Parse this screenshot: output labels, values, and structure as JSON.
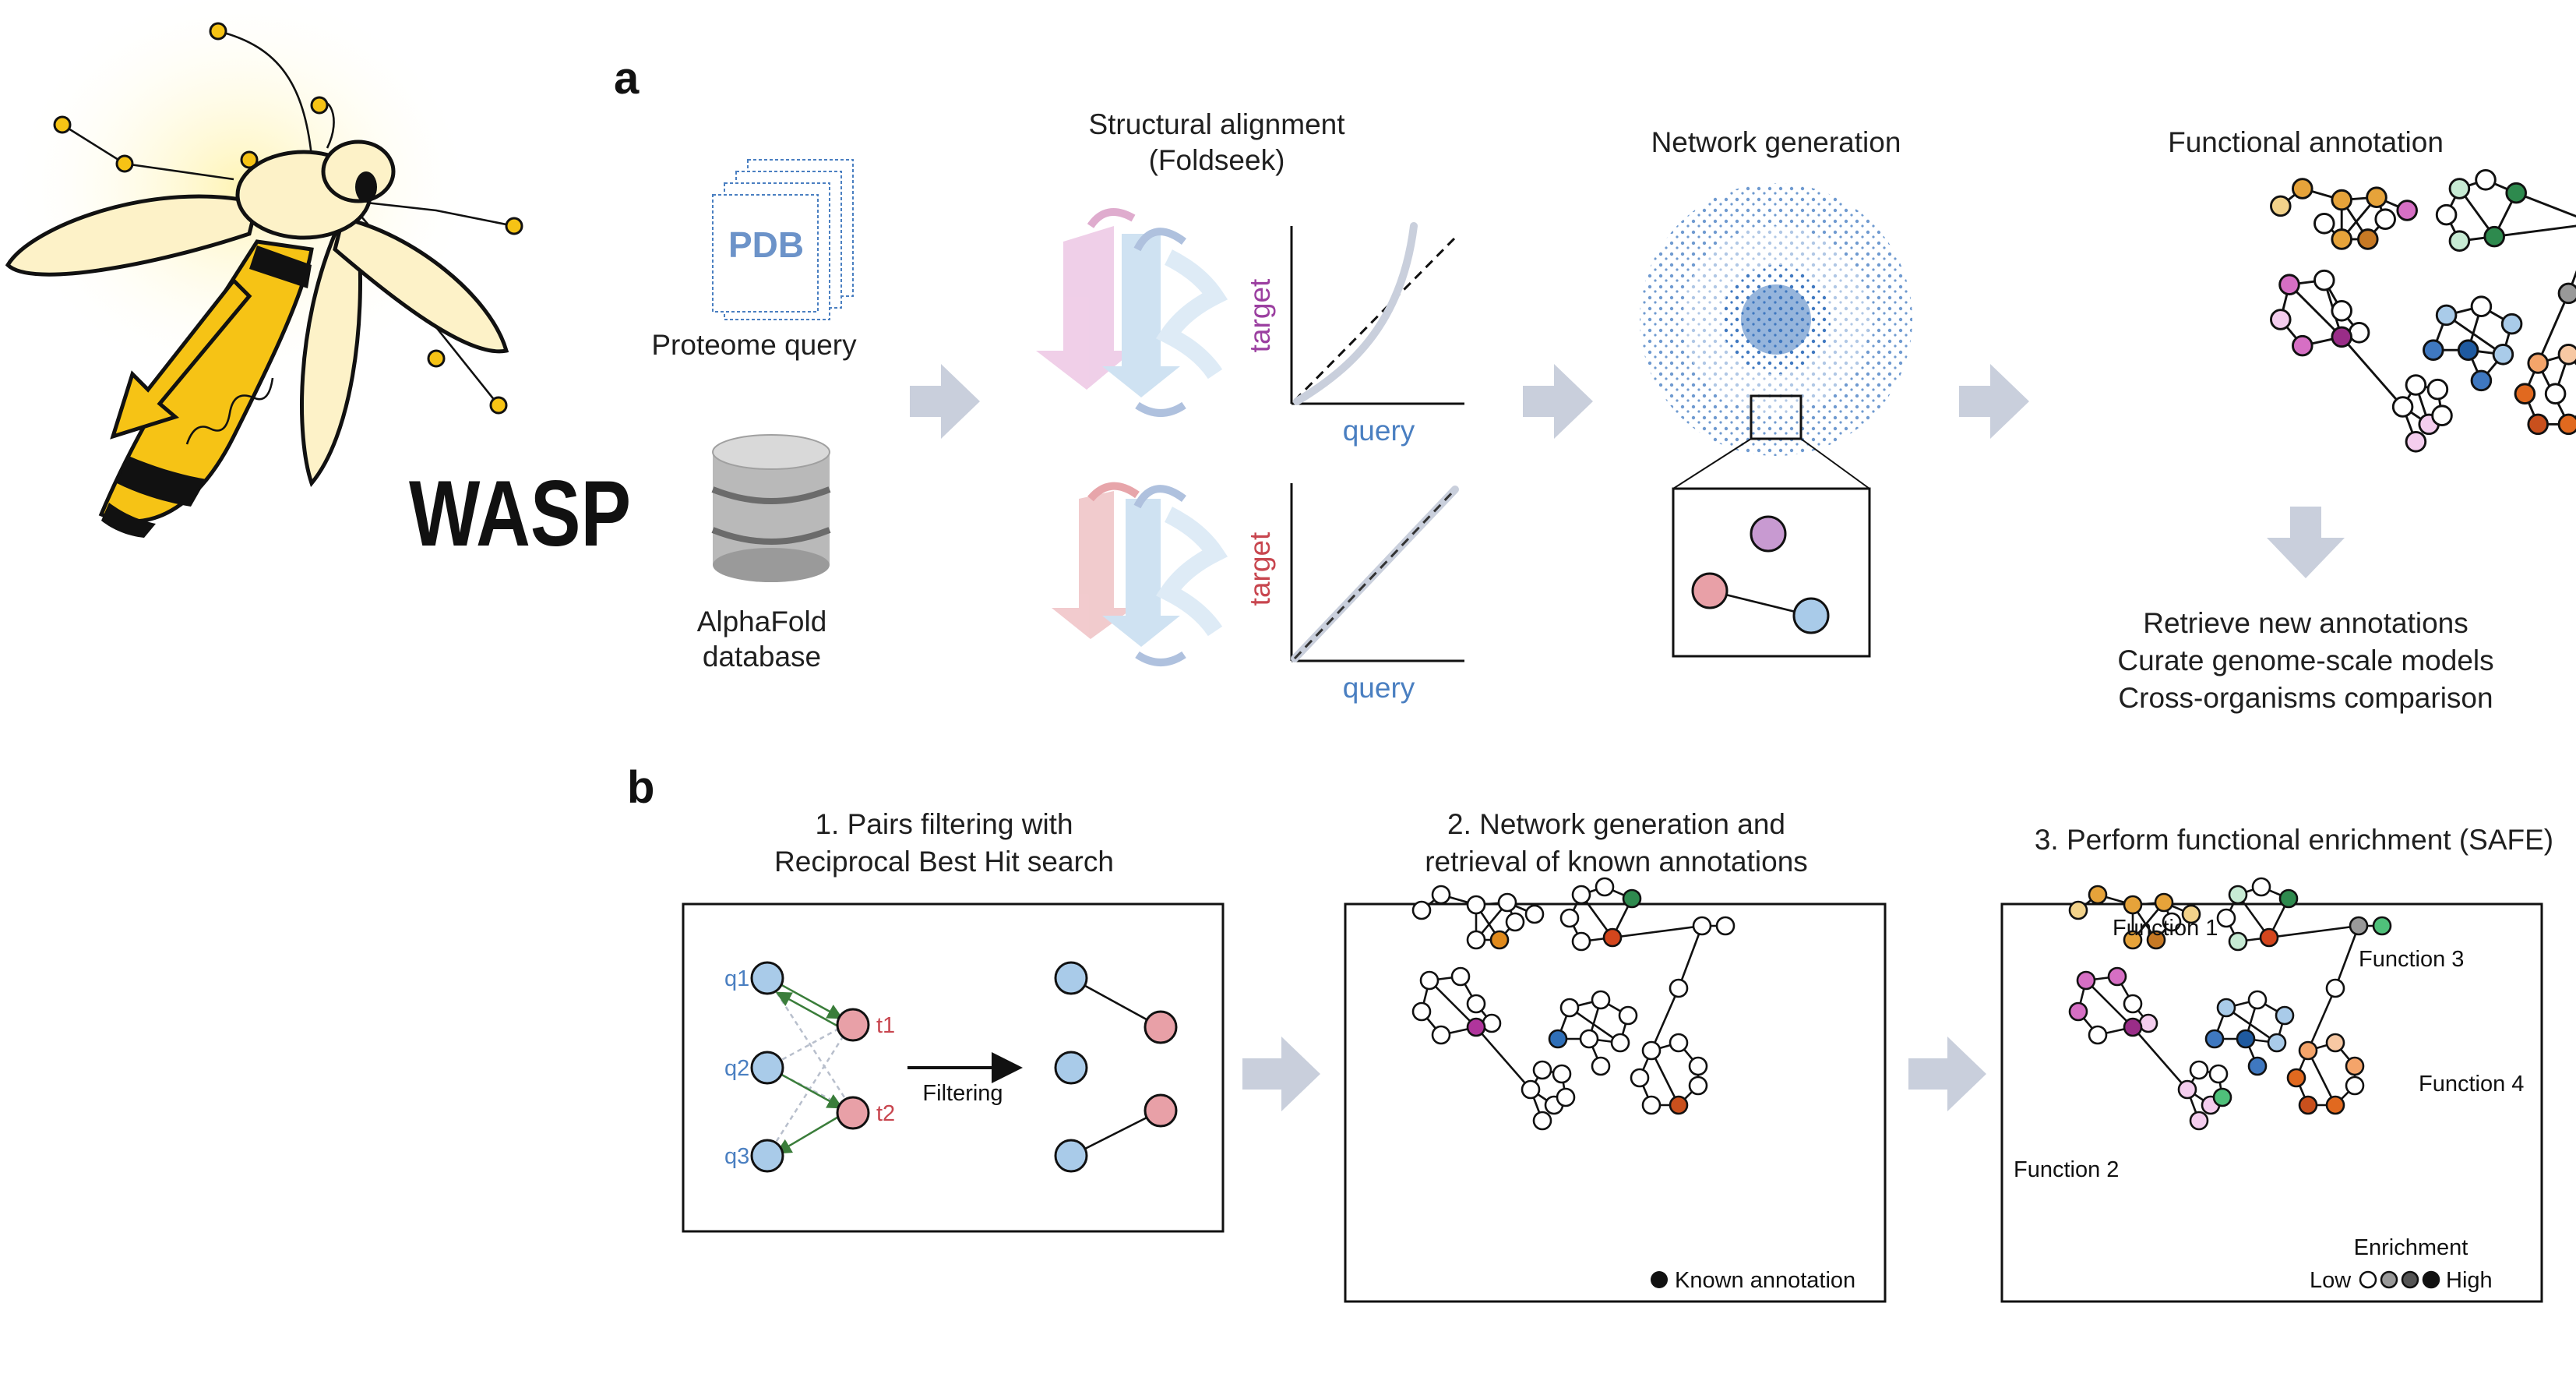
{
  "logo": {
    "text": "WASP"
  },
  "panel_a": {
    "label": "a",
    "pdb_text": "PDB",
    "proteome_query": "Proteome query",
    "alphafold_line1": "AlphaFold",
    "alphafold_line2": "database",
    "alignment_title_line1": "Structural alignment",
    "alignment_title_line2": "(Foldseek)",
    "plot1": {
      "ylabel": "target",
      "xlabel": "query"
    },
    "plot2": {
      "ylabel": "target",
      "xlabel": "query"
    },
    "network_title": "Network generation",
    "functional_title": "Functional annotation",
    "outcomes": [
      "Retrieve new annotations",
      "Curate genome-scale models",
      "Cross-organisms comparison"
    ]
  },
  "panel_b": {
    "label": "b",
    "step1_line1": "1. Pairs filtering with",
    "step1_line2": "Reciprocal Best Hit search",
    "step2_line1": "2. Network generation and",
    "step2_line2": "retrieval of known annotations",
    "step3_title": "3. Perform functional enrichment (SAFE)",
    "queries": [
      "q1",
      "q2",
      "q3"
    ],
    "targets": [
      "t1",
      "t2"
    ],
    "filtering": "Filtering",
    "known_annotation": "Known annotation",
    "functions": [
      "Function 1",
      "Function 2",
      "Function 3",
      "Function 4"
    ],
    "enrichment_title": "Enrichment",
    "enrichment_low": "Low",
    "enrichment_high": "High"
  },
  "colors": {
    "query_blue": "#4a7fc1",
    "target_red": "#c8464f",
    "arrow_grey": "#c9cfdc",
    "network_blue": "#3f78c0",
    "logo_yellow": "#f6c315",
    "logo_cream": "#fdf2c8",
    "logo_glow": "#fff6c2"
  }
}
